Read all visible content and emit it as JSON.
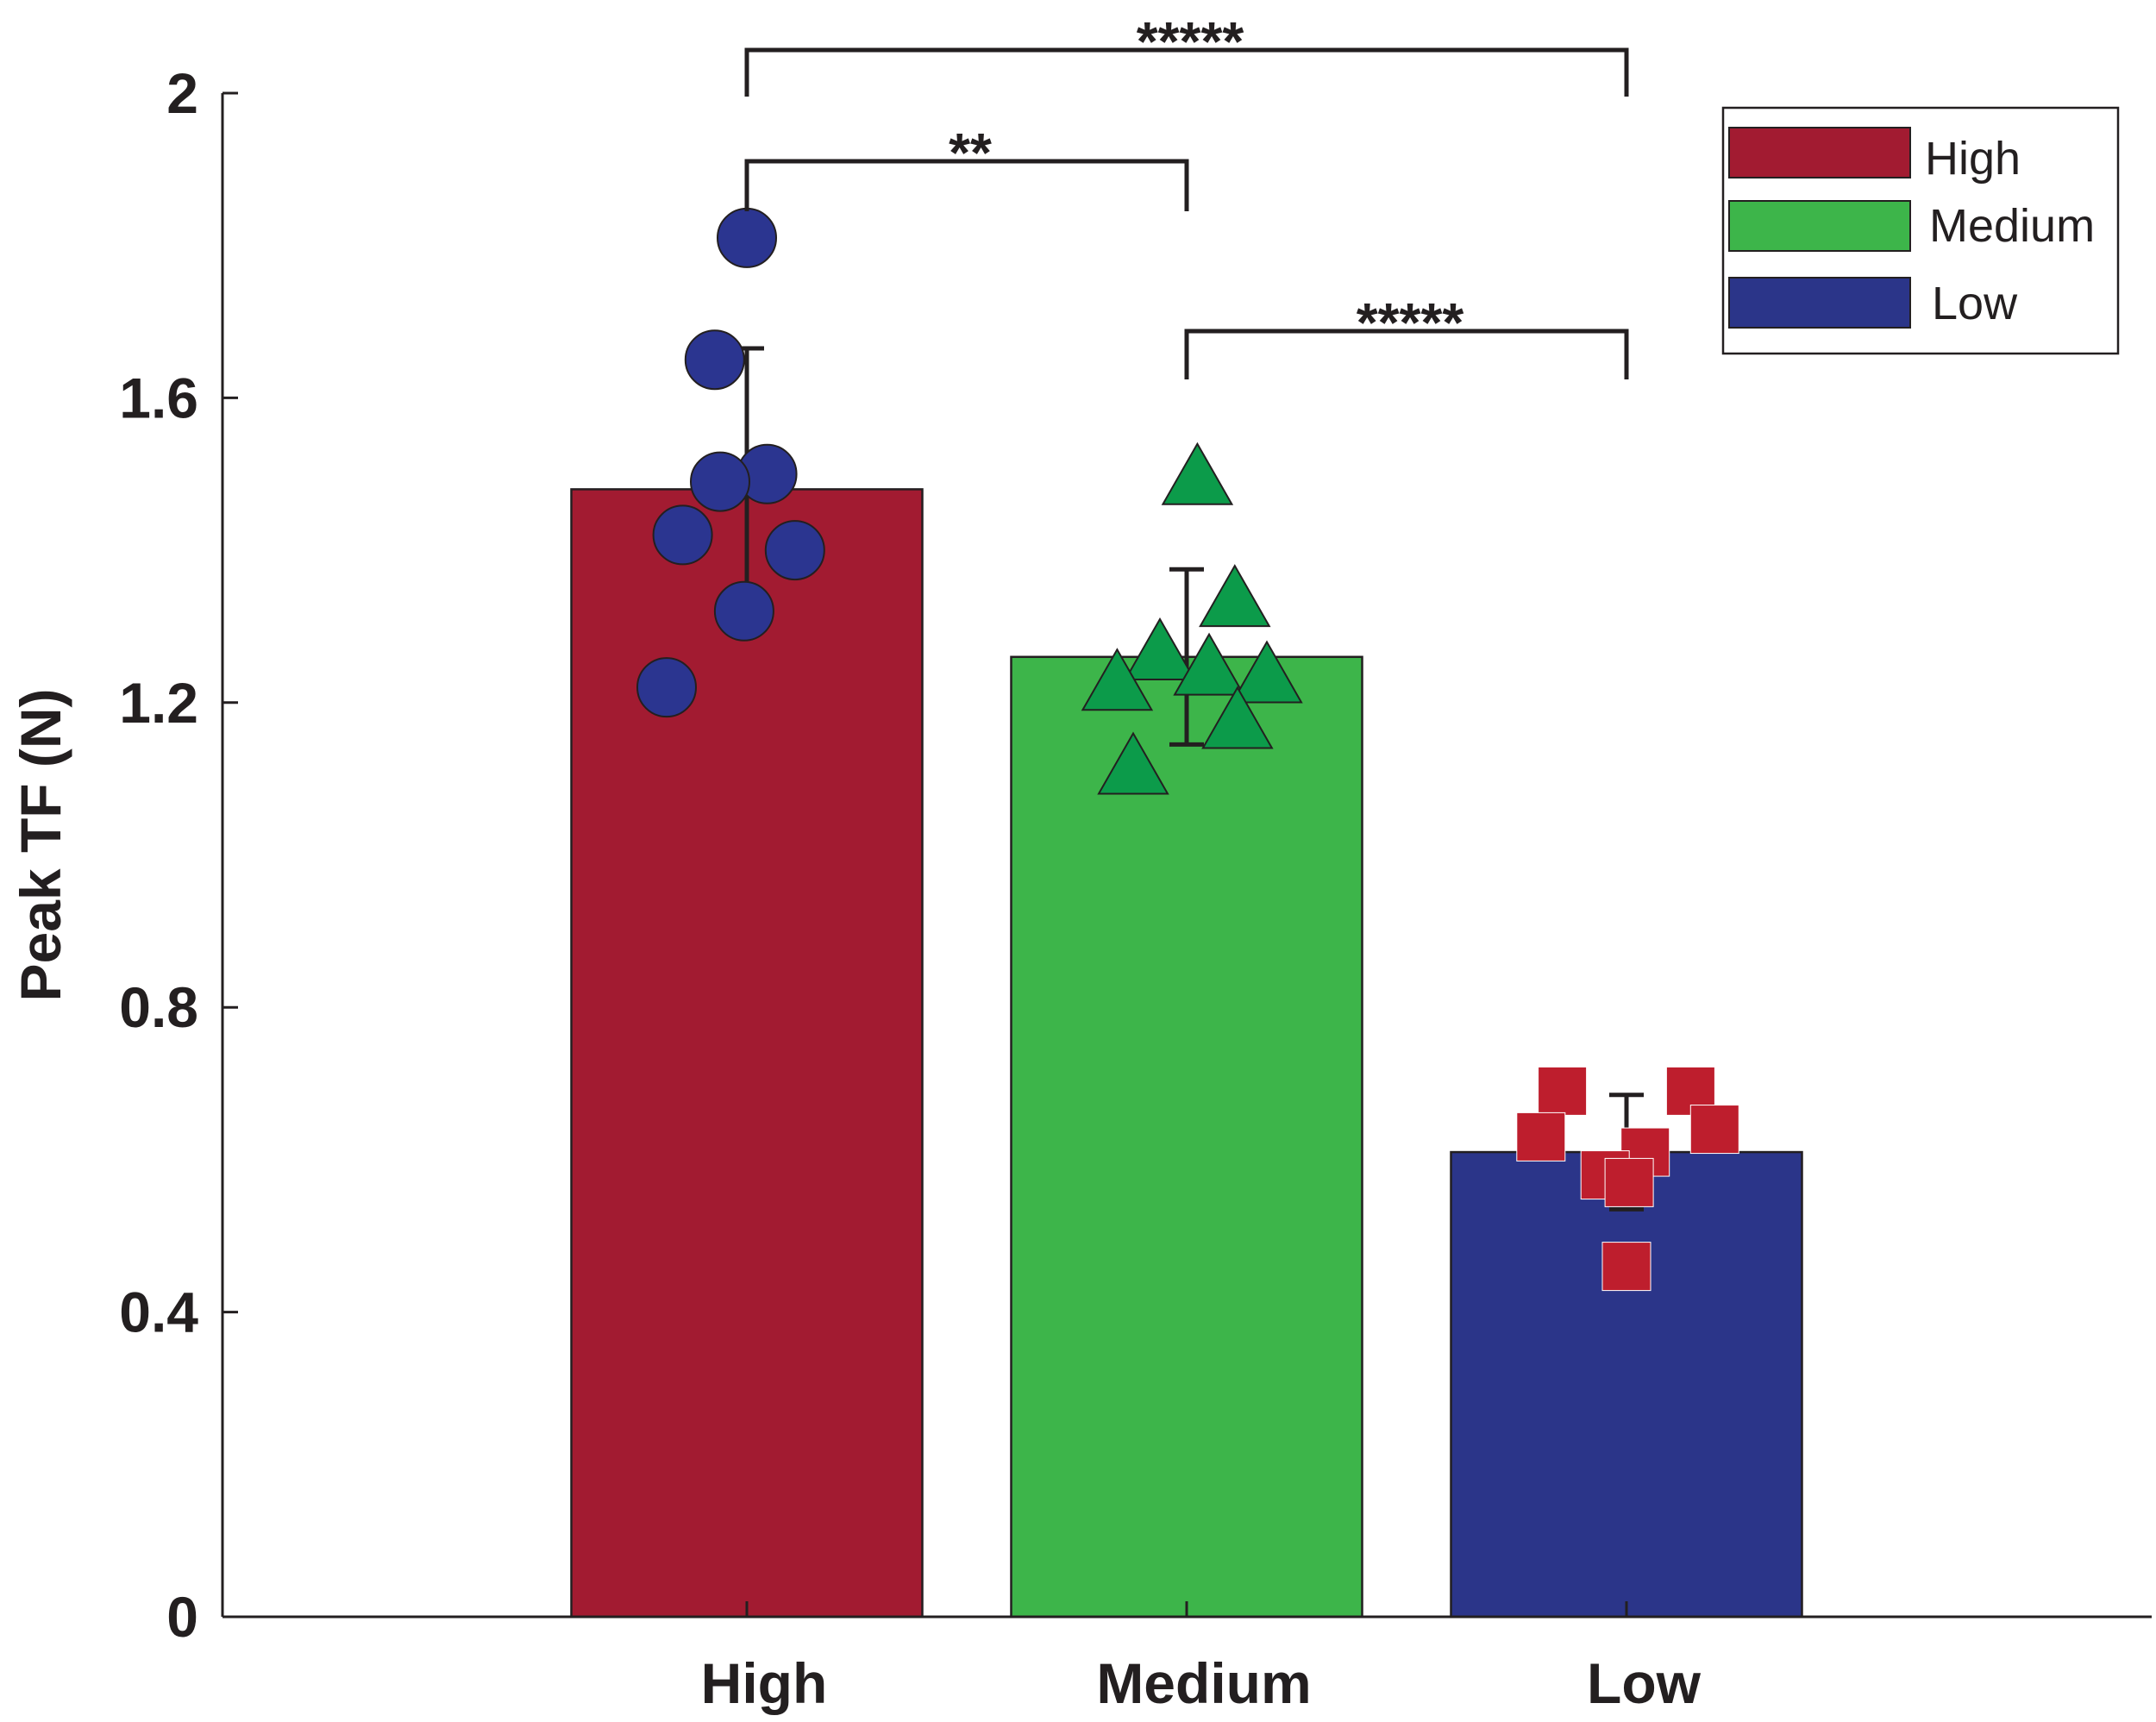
{
  "chart_data": {
    "type": "bar",
    "title": "",
    "xlabel": "",
    "ylabel": "Peak TF (N)",
    "ylim": [
      0,
      2
    ],
    "yticks": [
      0,
      0.4,
      0.8,
      1.2,
      1.6,
      2
    ],
    "ytick_labels": [
      "0",
      "0.4",
      "0.8",
      "1.2",
      "1.6",
      "2"
    ],
    "grid": false,
    "legend_position": "top-right",
    "categories": [
      "High",
      "Medium",
      "Low"
    ],
    "values": [
      1.48,
      1.26,
      0.61
    ],
    "errors": [
      0.185,
      0.115,
      0.075
    ],
    "bar_colors": [
      "#a21b31",
      "#3db54a",
      "#2b3589"
    ],
    "legend": [
      {
        "label": "High",
        "color": "#a21b31"
      },
      {
        "label": "Medium",
        "color": "#3db54a"
      },
      {
        "label": "Low",
        "color": "#2b3589"
      }
    ],
    "points": [
      {
        "category": "High",
        "marker": "circle",
        "color": "#2b3590",
        "offsets": [
          0,
          -0.6,
          0.38,
          -0.5,
          0.9,
          -1.2,
          -0.05,
          -1.5
        ],
        "values": [
          1.81,
          1.65,
          1.5,
          1.49,
          1.4,
          1.42,
          1.32,
          1.22
        ]
      },
      {
        "category": "Medium",
        "marker": "triangle",
        "color": "#0c9b4a",
        "offsets": [
          0.2,
          0.9,
          -0.5,
          0.42,
          1.5,
          -1.3,
          0.95,
          -1.0
        ],
        "values": [
          1.5,
          1.34,
          1.27,
          1.25,
          1.24,
          1.23,
          1.18,
          1.12
        ]
      },
      {
        "category": "Low",
        "marker": "square",
        "color": "#be1e2d",
        "offsets": [
          -1.2,
          1.2,
          -1.6,
          1.65,
          0.35,
          -0.4,
          0.05,
          0.0
        ],
        "values": [
          0.69,
          0.69,
          0.63,
          0.64,
          0.61,
          0.58,
          0.57,
          0.46
        ]
      }
    ],
    "significance": [
      {
        "from": "High",
        "to": "Low",
        "label": "*****"
      },
      {
        "from": "High",
        "to": "Medium",
        "label": "**"
      },
      {
        "from": "Medium",
        "to": "Low",
        "label": "*****"
      }
    ]
  }
}
